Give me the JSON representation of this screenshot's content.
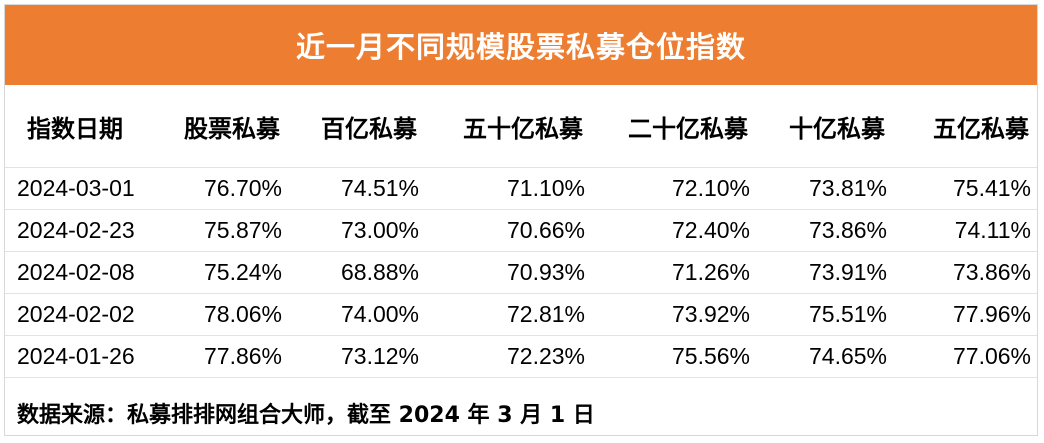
{
  "title": "近一月不同规模股票私募仓位指数",
  "table": {
    "headers": [
      "指数日期",
      "股票私募",
      "百亿私募",
      "五十亿私募",
      "二十亿私募",
      "十亿私募",
      "五亿私募"
    ],
    "rows": [
      [
        "2024-03-01",
        "76.70%",
        "74.51%",
        "71.10%",
        "72.10%",
        "73.81%",
        "75.41%"
      ],
      [
        "2024-02-23",
        "75.87%",
        "73.00%",
        "70.66%",
        "72.40%",
        "73.86%",
        "74.11%"
      ],
      [
        "2024-02-08",
        "75.24%",
        "68.88%",
        "70.93%",
        "71.26%",
        "73.91%",
        "73.86%"
      ],
      [
        "2024-02-02",
        "78.06%",
        "74.00%",
        "72.81%",
        "73.92%",
        "75.51%",
        "77.96%"
      ],
      [
        "2024-01-26",
        "77.86%",
        "73.12%",
        "72.23%",
        "75.56%",
        "74.65%",
        "77.06%"
      ]
    ]
  },
  "footer": "数据来源：私募排排网组合大师，截至 2024 年 3 月 1 日",
  "colors": {
    "header_bg": "#ed7d31",
    "header_text": "#ffffff"
  }
}
